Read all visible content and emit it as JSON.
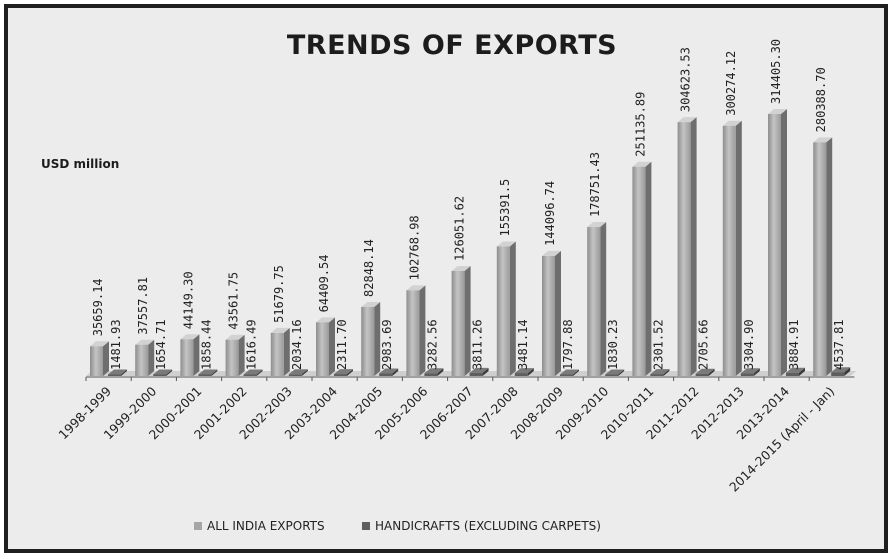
{
  "chart_data": {
    "type": "bar",
    "title": "TRENDS OF EXPORTS",
    "ylabel": "USD million",
    "xlabel": "",
    "ylim": [
      0,
      330000
    ],
    "grid": false,
    "legend_position": "bottom",
    "categories": [
      "1998-1999",
      "1999-2000",
      "2000-2001",
      "2001-2002",
      "2002-2003",
      "2003-2004",
      "2004-2005",
      "2005-2006",
      "2006-2007",
      "2007-2008",
      "2008-2009",
      "2009-2010",
      "2010-2011",
      "2011-2012",
      "2012-2013",
      "2013-2014",
      "2014-2015 (April - Jan)"
    ],
    "series": [
      {
        "name": "ALL INDIA EXPORTS",
        "color": "#a6a6a6",
        "values": [
          35659.14,
          37557.81,
          44149.3,
          43561.75,
          51679.75,
          64409.54,
          82848.14,
          102768.98,
          126051.62,
          155391.5,
          144096.74,
          178751.43,
          251135.89,
          304623.53,
          300274.12,
          314405.3,
          280388.7
        ],
        "labels": [
          "35659.14",
          "37557.81",
          "44149.30",
          "43561.75",
          "51679.75",
          "64409.54",
          "82848.14",
          "102768.98",
          "126051.62",
          "155391.5",
          "144096.74",
          "178751.43",
          "251135.89",
          "304623.53",
          "300274.12",
          "314405.30",
          "280388.70"
        ]
      },
      {
        "name": "HANDICRAFTS (EXCLUDING CARPETS)",
        "color": "#5e5e5e",
        "values": [
          1481.93,
          1654.71,
          1858.44,
          1616.49,
          2034.16,
          2311.7,
          2983.69,
          3282.56,
          3811.26,
          3481.14,
          1797.88,
          1830.23,
          2301.52,
          2705.66,
          3304.9,
          3884.91,
          4537.81
        ],
        "labels": [
          "1481.93",
          "1654.71",
          "1858.44",
          "1616.49",
          "2034.16",
          "2311.70",
          "2983.69",
          "3282.56",
          "3811.26",
          "3481.14",
          "1797.88",
          "1830.23",
          "2301.52",
          "2705.66",
          "3304.90",
          "3884.91",
          "4537.81"
        ]
      }
    ]
  }
}
